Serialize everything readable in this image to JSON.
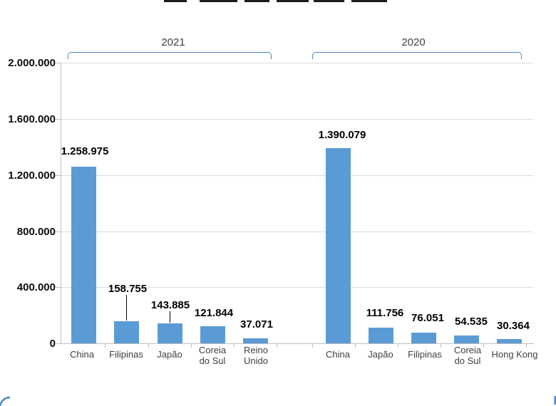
{
  "chart_data": {
    "type": "bar",
    "ylim": [
      0,
      2000000
    ],
    "ytick_values": [
      0,
      400000,
      800000,
      1200000,
      1600000,
      2000000
    ],
    "ytick_labels": [
      "0",
      "400.000",
      "800.000",
      "1.200.000",
      "1.600.000",
      "2.000.000"
    ],
    "grid": true,
    "bar_color": "#5b9bd5",
    "bracket_color": "#4e86c0",
    "groups": [
      {
        "label": "2021",
        "categories": [
          "China",
          "Filipinas",
          "Japão",
          "Coreia do Sul",
          "Reino Unido"
        ],
        "values": [
          1258975,
          158755,
          143885,
          121844,
          37071
        ],
        "value_labels": [
          "1.258.975",
          "158.755",
          "143.885",
          "121.844",
          "37.071"
        ]
      },
      {
        "label": "2020",
        "categories": [
          "China",
          "Japão",
          "Filipinas",
          "Coreia do Sul",
          "Hong Kong"
        ],
        "values": [
          1390079,
          111756,
          76051,
          54535,
          30364
        ],
        "value_labels": [
          "1.390.079",
          "111.756",
          "76.051",
          "54.535",
          "30.364"
        ]
      }
    ]
  }
}
